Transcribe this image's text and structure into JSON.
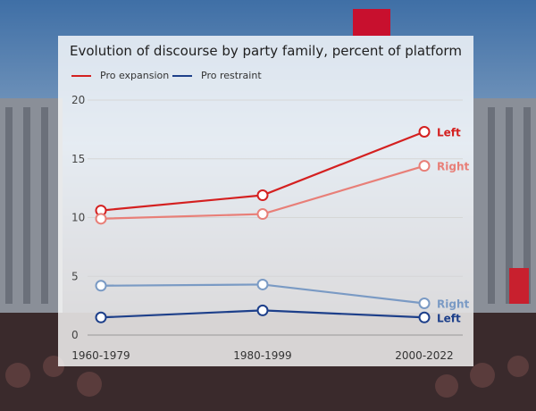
{
  "chart_data": {
    "type": "line",
    "title": "Evolution of discourse by party family, percent of platform",
    "categories": [
      "1960-1979",
      "1980-1999",
      "2000-2022"
    ],
    "yticks": [
      0,
      5,
      10,
      15,
      20
    ],
    "ylim": [
      0,
      20
    ],
    "legend": [
      {
        "label": "Pro expansion",
        "color": "#d42020"
      },
      {
        "label": "Pro restraint",
        "color": "#1d3f8a"
      }
    ],
    "series": [
      {
        "group": "Pro expansion",
        "end_label": "Left",
        "color": "#d42020",
        "opacity": 1.0,
        "values": [
          10.6,
          11.9,
          17.3
        ]
      },
      {
        "group": "Pro expansion",
        "end_label": "Right",
        "color": "#e87f78",
        "opacity": 1.0,
        "values": [
          9.9,
          10.3,
          14.4
        ]
      },
      {
        "group": "Pro restraint",
        "end_label": "Right",
        "color": "#7a9ac4",
        "opacity": 1.0,
        "values": [
          4.2,
          4.3,
          2.7
        ]
      },
      {
        "group": "Pro restraint",
        "end_label": "Left",
        "color": "#1d3f8a",
        "opacity": 1.0,
        "values": [
          1.5,
          2.1,
          1.5
        ]
      }
    ]
  }
}
